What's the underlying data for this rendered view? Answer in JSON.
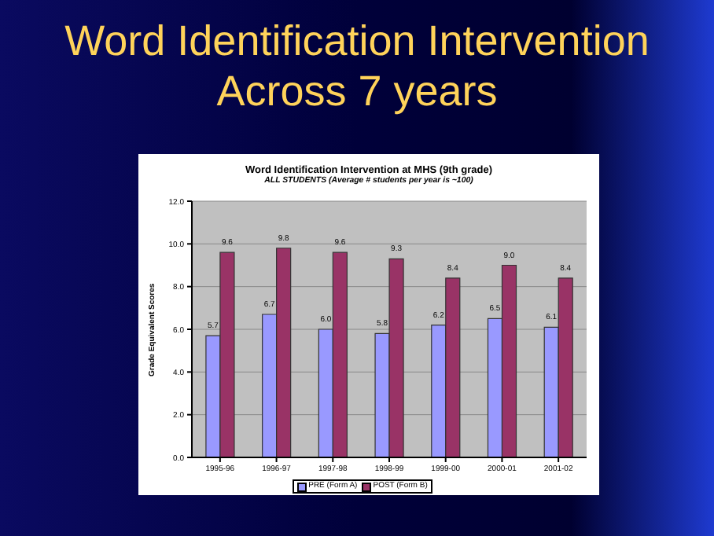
{
  "chart_data": {
    "type": "bar",
    "title": "Word Identification Intervention Across 7 years",
    "subtitle": "Word Identification Intervention at MHS (9th grade)",
    "annotations": [
      "ALL STUDENTS (Average # students per year is ~100)"
    ],
    "ylabel": "Grade Equivalent Scores",
    "categories": [
      "1995-96",
      "1996-97",
      "1997-98",
      "1998-99",
      "1999-00",
      "2000-01",
      "2001-02"
    ],
    "series": [
      {
        "name": "PRE (Form A)",
        "color": "#9999ff",
        "values": [
          5.7,
          6.7,
          6.0,
          5.8,
          6.2,
          6.5,
          6.1
        ],
        "value_labels": [
          "5.7",
          "6.7",
          "6.0",
          "5.8",
          "6.2",
          "6.5",
          "6.1"
        ]
      },
      {
        "name": "POST (Form B)",
        "color": "#993366",
        "values": [
          9.6,
          9.8,
          9.6,
          9.3,
          8.4,
          9.0,
          8.4
        ],
        "value_labels": [
          "9.6",
          "9.8",
          "9.6",
          "9.3",
          "8.4",
          "9.0",
          "8.4"
        ]
      }
    ],
    "ylim": [
      0,
      12
    ],
    "yticks": [
      {
        "value": 0,
        "label": "0.0"
      },
      {
        "value": 2,
        "label": "2.0"
      },
      {
        "value": 4,
        "label": "4.0"
      },
      {
        "value": 6,
        "label": "6.0"
      },
      {
        "value": 8,
        "label": "8.0"
      },
      {
        "value": 10,
        "label": "10.0"
      },
      {
        "value": 12,
        "label": "12.0"
      }
    ],
    "grid": "y",
    "legend": "bottom"
  }
}
